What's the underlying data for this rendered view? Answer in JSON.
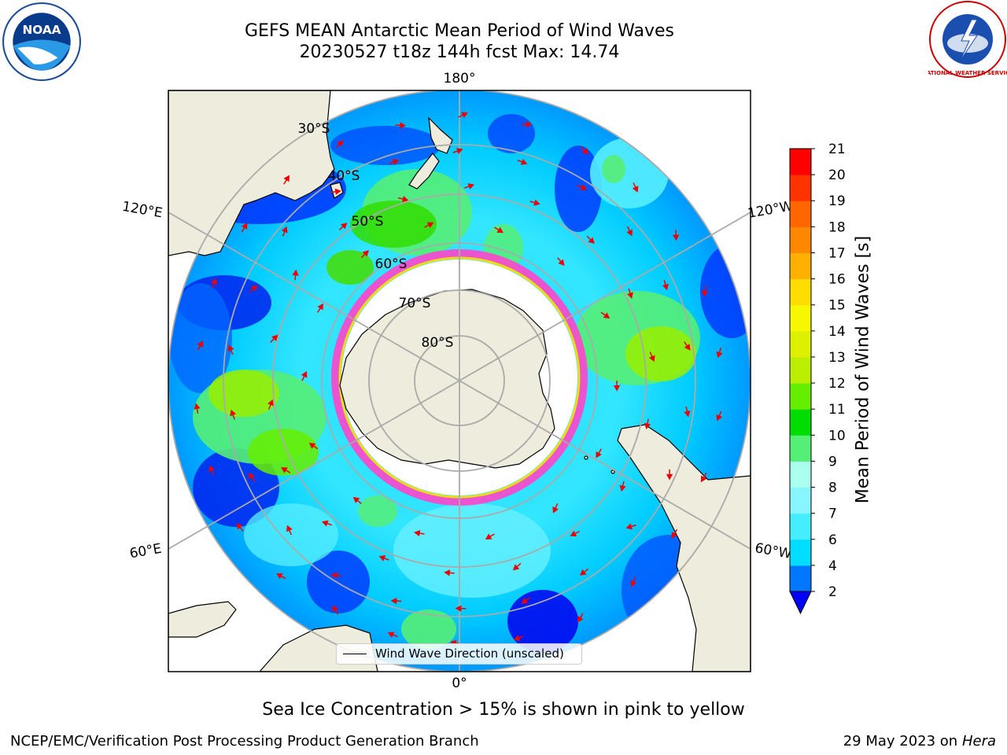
{
  "title": {
    "line1": "GEFS MEAN Antarctic Mean Period of Wind Waves",
    "line2": "20230527 t18z 144h fcst   Max: 14.74"
  },
  "logos": {
    "left": {
      "icon": "noaa-logo-icon",
      "text": "NOAA"
    },
    "right": {
      "icon": "national-weather-service-logo-icon",
      "text": "NATIONAL WEATHER SERVICE"
    }
  },
  "map": {
    "projection": "south-polar-stereographic",
    "longitude_labels": {
      "top": "180°",
      "bottom": "0°",
      "upper_left": "120°E",
      "upper_right": "120°W",
      "lower_left": "60°E",
      "lower_right": "60°W"
    },
    "latitude_labels": [
      "30°S",
      "40°S",
      "50°S",
      "60°S",
      "70°S",
      "80°S"
    ],
    "legend": {
      "label": "Wind Wave Direction (unscaled)"
    },
    "colors": {
      "land": "#eeecdc",
      "ice_edge": "#ff33cc",
      "ice_fill": "#ffffff",
      "arrow": "#ee0000"
    }
  },
  "colorbar": {
    "label": "Mean Period of Wind Waves [s]",
    "ticks": [
      "2",
      "4",
      "6",
      "7",
      "8",
      "9",
      "10",
      "11",
      "12",
      "13",
      "14",
      "15",
      "16",
      "17",
      "18",
      "19",
      "20",
      "21"
    ],
    "colors_bottom_to_top": [
      "#0077ff",
      "#00ddff",
      "#44eeff",
      "#88f6ff",
      "#aaffee",
      "#55ee77",
      "#00dd00",
      "#66ee00",
      "#bbee00",
      "#ddf000",
      "#f7f700",
      "#ffdd00",
      "#ffb000",
      "#ff8800",
      "#ff6600",
      "#ff3300",
      "#ff0000"
    ],
    "extend_color": "#0000ff"
  },
  "footnote": "Sea Ice Concentration > 15% is shown in pink to yellow",
  "credit": {
    "left": "NCEP/EMC/Verification Post Processing Product Generation Branch",
    "right_date": "29 May 2023 on",
    "right_host": "Hera"
  }
}
